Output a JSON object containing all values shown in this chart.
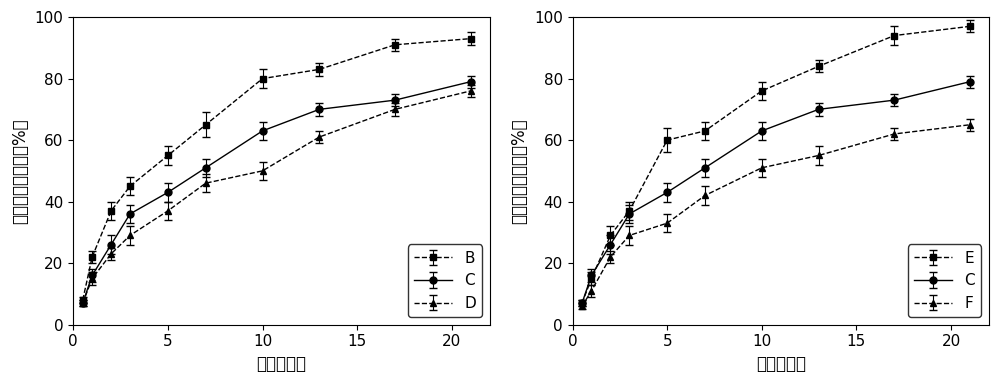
{
  "plot1": {
    "xlabel": "时间（天）",
    "ylabel": "叶酸累积释放率（%）",
    "x": [
      0.5,
      1,
      2,
      3,
      5,
      7,
      10,
      13,
      17,
      21
    ],
    "series": [
      {
        "label": "B",
        "y": [
          8,
          22,
          37,
          45,
          55,
          65,
          80,
          83,
          91,
          93
        ],
        "yerr": [
          1,
          2,
          3,
          3,
          3,
          4,
          3,
          2,
          2,
          2
        ],
        "marker": "s",
        "linestyle": "--"
      },
      {
        "label": "C",
        "y": [
          7,
          16,
          26,
          36,
          43,
          51,
          63,
          70,
          73,
          79
        ],
        "yerr": [
          1,
          2,
          3,
          3,
          3,
          3,
          3,
          2,
          2,
          2
        ],
        "marker": "o",
        "linestyle": "-"
      },
      {
        "label": "D",
        "y": [
          7,
          15,
          23,
          29,
          37,
          46,
          50,
          61,
          70,
          76
        ],
        "yerr": [
          1,
          2,
          2,
          3,
          3,
          3,
          3,
          2,
          2,
          2
        ],
        "marker": "^",
        "linestyle": "--"
      }
    ],
    "ylim": [
      0,
      100
    ],
    "xlim": [
      0,
      22
    ],
    "xticks": [
      0,
      5,
      10,
      15,
      20
    ],
    "yticks": [
      0,
      20,
      40,
      60,
      80,
      100
    ]
  },
  "plot2": {
    "xlabel": "时间（天）",
    "ylabel": "叶酸累积释放率（%）",
    "x": [
      0.5,
      1,
      2,
      3,
      5,
      7,
      10,
      13,
      17,
      21
    ],
    "series": [
      {
        "label": "E",
        "y": [
          7,
          15,
          29,
          37,
          60,
          63,
          76,
          84,
          94,
          97
        ],
        "yerr": [
          1,
          2,
          3,
          3,
          4,
          3,
          3,
          2,
          3,
          2
        ],
        "marker": "s",
        "linestyle": "--"
      },
      {
        "label": "C",
        "y": [
          7,
          16,
          26,
          36,
          43,
          51,
          63,
          70,
          73,
          79
        ],
        "yerr": [
          1,
          2,
          3,
          3,
          3,
          3,
          3,
          2,
          2,
          2
        ],
        "marker": "o",
        "linestyle": "-"
      },
      {
        "label": "F",
        "y": [
          6,
          11,
          22,
          29,
          33,
          42,
          51,
          55,
          62,
          65
        ],
        "yerr": [
          1,
          2,
          2,
          3,
          3,
          3,
          3,
          3,
          2,
          2
        ],
        "marker": "^",
        "linestyle": "--"
      }
    ],
    "ylim": [
      0,
      100
    ],
    "xlim": [
      0,
      22
    ],
    "xticks": [
      0,
      5,
      10,
      15,
      20
    ],
    "yticks": [
      0,
      20,
      40,
      60,
      80,
      100
    ]
  },
  "color": "#000000",
  "legend_loc": "lower right",
  "tick_fontsize": 11,
  "label_fontsize": 12,
  "legend_fontsize": 11,
  "marker_size": 5,
  "linewidth": 1.0,
  "capsize": 3,
  "elinewidth": 0.8,
  "figure_bg": "#ffffff"
}
